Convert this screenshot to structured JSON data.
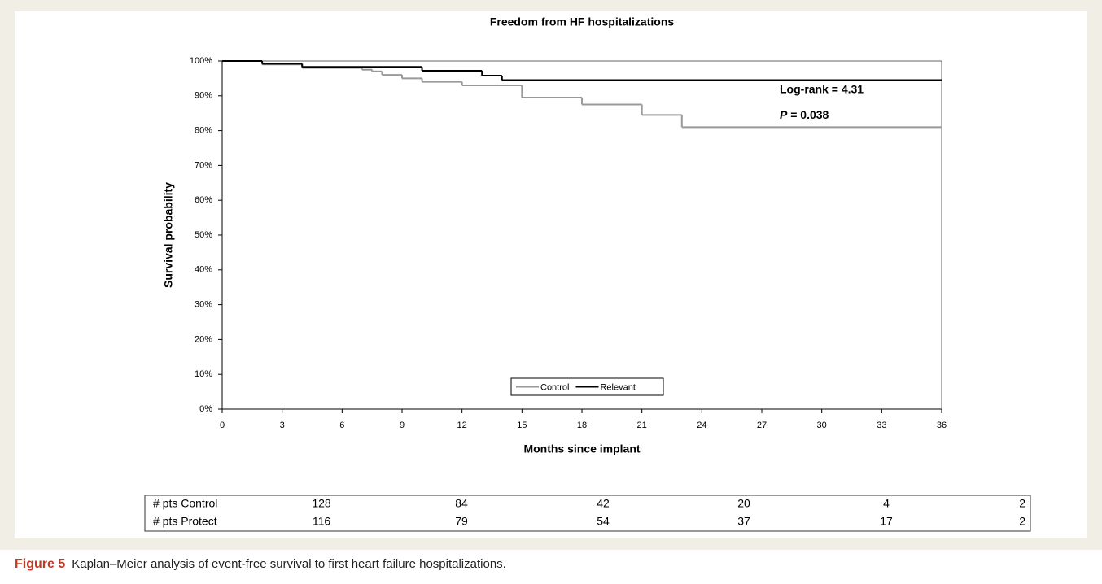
{
  "chart_data": {
    "type": "step",
    "title": "Freedom from HF hospitalizations",
    "xlabel": "Months since implant",
    "ylabel": "Survival probability",
    "xlim": [
      0,
      36
    ],
    "xticks": [
      0,
      3,
      6,
      9,
      12,
      15,
      18,
      21,
      24,
      27,
      30,
      33,
      36
    ],
    "ylim": [
      0,
      100
    ],
    "yticks": [
      {
        "value": 0,
        "label": "0%"
      },
      {
        "value": 10,
        "label": "10%"
      },
      {
        "value": 20,
        "label": "20%"
      },
      {
        "value": 30,
        "label": "30%"
      },
      {
        "value": 40,
        "label": "40%"
      },
      {
        "value": 50,
        "label": "50%"
      },
      {
        "value": 60,
        "label": "60%"
      },
      {
        "value": 70,
        "label": "70%"
      },
      {
        "value": 80,
        "label": "80%"
      },
      {
        "value": 90,
        "label": "90%"
      },
      {
        "value": 100,
        "label": "100%"
      }
    ],
    "legend": "lower center",
    "series": [
      {
        "name": "Control",
        "color": "#999999",
        "x": [
          0,
          2,
          4,
          7,
          7.5,
          8,
          9,
          10,
          12,
          15,
          18,
          21,
          23
        ],
        "values": [
          100,
          99,
          98,
          97.5,
          97,
          96,
          95,
          94,
          93,
          89.5,
          87.5,
          84.5,
          81
        ]
      },
      {
        "name": "Relevant",
        "color": "#000000",
        "x": [
          0,
          2,
          4,
          10,
          13,
          14
        ],
        "values": [
          100,
          99.2,
          98.3,
          97.2,
          95.8,
          94.5
        ]
      }
    ],
    "annotations": {
      "log_rank": "Log-rank = 4.31",
      "p_symbol": "P",
      "p_value": "= 0.038"
    }
  },
  "risk_table": {
    "rows": [
      {
        "label": "# pts Control",
        "values": [
          "128",
          "84",
          "42",
          "20",
          "4",
          "2"
        ]
      },
      {
        "label": "# pts Protect",
        "values": [
          "116",
          "79",
          "54",
          "37",
          "17",
          "2"
        ]
      }
    ]
  },
  "caption": {
    "label": "Figure 5",
    "text": "Kaplan–Meier analysis of event-free survival to first heart failure hospitalizations."
  }
}
